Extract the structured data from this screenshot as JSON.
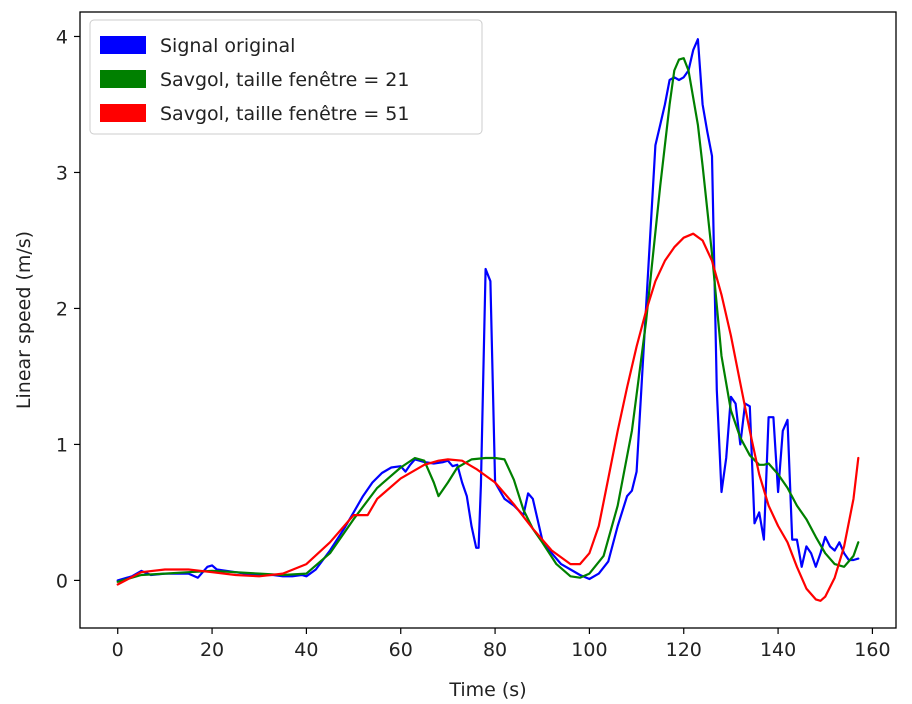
{
  "chart_data": {
    "type": "line",
    "title": "",
    "xlabel": "Time (s)",
    "ylabel": "Linear speed (m/s)",
    "xlim": [
      -8,
      165
    ],
    "ylim": [
      -0.35,
      4.18
    ],
    "xticks": [
      0,
      20,
      40,
      60,
      80,
      100,
      120,
      140,
      160
    ],
    "yticks": [
      0,
      1,
      2,
      3,
      4
    ],
    "grid": false,
    "legend": "top-left",
    "series": [
      {
        "name": "Signal original",
        "color": "#0000ff",
        "x": [
          0,
          3,
          5,
          7,
          10,
          13,
          15,
          17,
          19,
          20,
          21,
          23,
          25,
          27,
          30,
          33,
          35,
          37,
          39,
          40,
          42,
          45,
          48,
          50,
          52,
          54,
          56,
          58,
          60,
          61,
          62,
          63,
          64,
          65,
          67,
          69,
          70,
          71,
          72,
          73,
          74,
          75,
          76,
          76.5,
          77,
          78,
          79,
          80,
          82,
          84,
          86,
          87,
          88,
          90,
          92,
          94,
          96,
          98,
          100,
          102,
          104,
          106,
          108,
          109,
          110,
          112,
          114,
          115,
          116,
          117,
          118,
          119,
          120,
          121,
          122,
          123,
          124,
          125,
          126,
          127,
          128,
          129,
          130,
          131,
          132,
          133,
          134,
          135,
          136,
          137,
          138,
          139,
          140,
          141,
          142,
          143,
          144,
          145,
          146,
          147,
          148,
          149,
          150,
          151,
          152,
          153,
          154,
          155,
          156,
          157
        ],
        "y": [
          0.0,
          0.03,
          0.07,
          0.04,
          0.05,
          0.05,
          0.05,
          0.02,
          0.1,
          0.11,
          0.08,
          0.07,
          0.06,
          0.05,
          0.04,
          0.04,
          0.03,
          0.03,
          0.04,
          0.03,
          0.08,
          0.22,
          0.38,
          0.5,
          0.62,
          0.72,
          0.79,
          0.83,
          0.84,
          0.8,
          0.85,
          0.89,
          0.88,
          0.87,
          0.86,
          0.87,
          0.88,
          0.84,
          0.85,
          0.72,
          0.62,
          0.4,
          0.24,
          0.24,
          0.7,
          2.29,
          2.2,
          0.72,
          0.6,
          0.55,
          0.48,
          0.64,
          0.6,
          0.3,
          0.2,
          0.12,
          0.08,
          0.04,
          0.01,
          0.05,
          0.14,
          0.4,
          0.62,
          0.66,
          0.8,
          2.0,
          3.2,
          3.35,
          3.5,
          3.68,
          3.7,
          3.68,
          3.7,
          3.75,
          3.9,
          3.98,
          3.5,
          3.3,
          3.12,
          1.4,
          0.65,
          0.9,
          1.35,
          1.3,
          1.0,
          1.3,
          1.28,
          0.42,
          0.5,
          0.3,
          1.2,
          1.2,
          0.65,
          1.1,
          1.18,
          0.3,
          0.3,
          0.1,
          0.25,
          0.2,
          0.1,
          0.2,
          0.32,
          0.25,
          0.22,
          0.28,
          0.2,
          0.15,
          0.15,
          0.16
        ]
      },
      {
        "name": "Savgol, taille fenêtre = 21",
        "color": "#008000",
        "x": [
          0,
          5,
          10,
          15,
          20,
          25,
          30,
          35,
          40,
          45,
          50,
          55,
          60,
          63,
          65,
          67,
          68,
          70,
          72,
          75,
          78,
          80,
          82,
          84,
          86,
          88,
          90,
          93,
          96,
          98,
          100,
          103,
          106,
          109,
          112,
          115,
          117,
          118,
          119,
          120,
          121,
          122,
          123,
          124,
          126,
          128,
          130,
          132,
          134,
          136,
          137,
          138,
          140,
          142,
          144,
          146,
          148,
          150,
          152,
          154,
          156,
          157
        ],
        "y": [
          -0.01,
          0.04,
          0.05,
          0.06,
          0.07,
          0.06,
          0.05,
          0.04,
          0.05,
          0.2,
          0.45,
          0.68,
          0.83,
          0.9,
          0.88,
          0.72,
          0.62,
          0.72,
          0.83,
          0.89,
          0.9,
          0.9,
          0.89,
          0.74,
          0.52,
          0.38,
          0.28,
          0.12,
          0.03,
          0.02,
          0.05,
          0.18,
          0.55,
          1.1,
          1.9,
          2.9,
          3.5,
          3.75,
          3.83,
          3.84,
          3.75,
          3.55,
          3.35,
          3.05,
          2.4,
          1.65,
          1.25,
          1.05,
          0.92,
          0.85,
          0.85,
          0.86,
          0.78,
          0.68,
          0.55,
          0.45,
          0.32,
          0.2,
          0.12,
          0.1,
          0.18,
          0.28
        ]
      },
      {
        "name": "Savgol, taille fenêtre = 51",
        "color": "#ff0000",
        "x": [
          0,
          5,
          10,
          15,
          20,
          25,
          30,
          35,
          40,
          45,
          50,
          53,
          55,
          60,
          65,
          68,
          70,
          73,
          76,
          80,
          84,
          88,
          92,
          96,
          98,
          100,
          102,
          104,
          106,
          108,
          110,
          112,
          114,
          116,
          118,
          120,
          122,
          124,
          126,
          128,
          130,
          132,
          134,
          136,
          138,
          140,
          142,
          144,
          146,
          148,
          149,
          150,
          152,
          154,
          156,
          157
        ],
        "y": [
          -0.03,
          0.06,
          0.08,
          0.08,
          0.06,
          0.04,
          0.03,
          0.05,
          0.12,
          0.28,
          0.48,
          0.48,
          0.6,
          0.75,
          0.85,
          0.88,
          0.89,
          0.88,
          0.82,
          0.72,
          0.56,
          0.38,
          0.22,
          0.12,
          0.12,
          0.2,
          0.4,
          0.75,
          1.1,
          1.42,
          1.72,
          1.98,
          2.2,
          2.35,
          2.45,
          2.52,
          2.55,
          2.5,
          2.35,
          2.1,
          1.8,
          1.45,
          1.1,
          0.78,
          0.55,
          0.4,
          0.28,
          0.1,
          -0.06,
          -0.14,
          -0.15,
          -0.12,
          0.02,
          0.25,
          0.6,
          0.9
        ]
      }
    ]
  }
}
